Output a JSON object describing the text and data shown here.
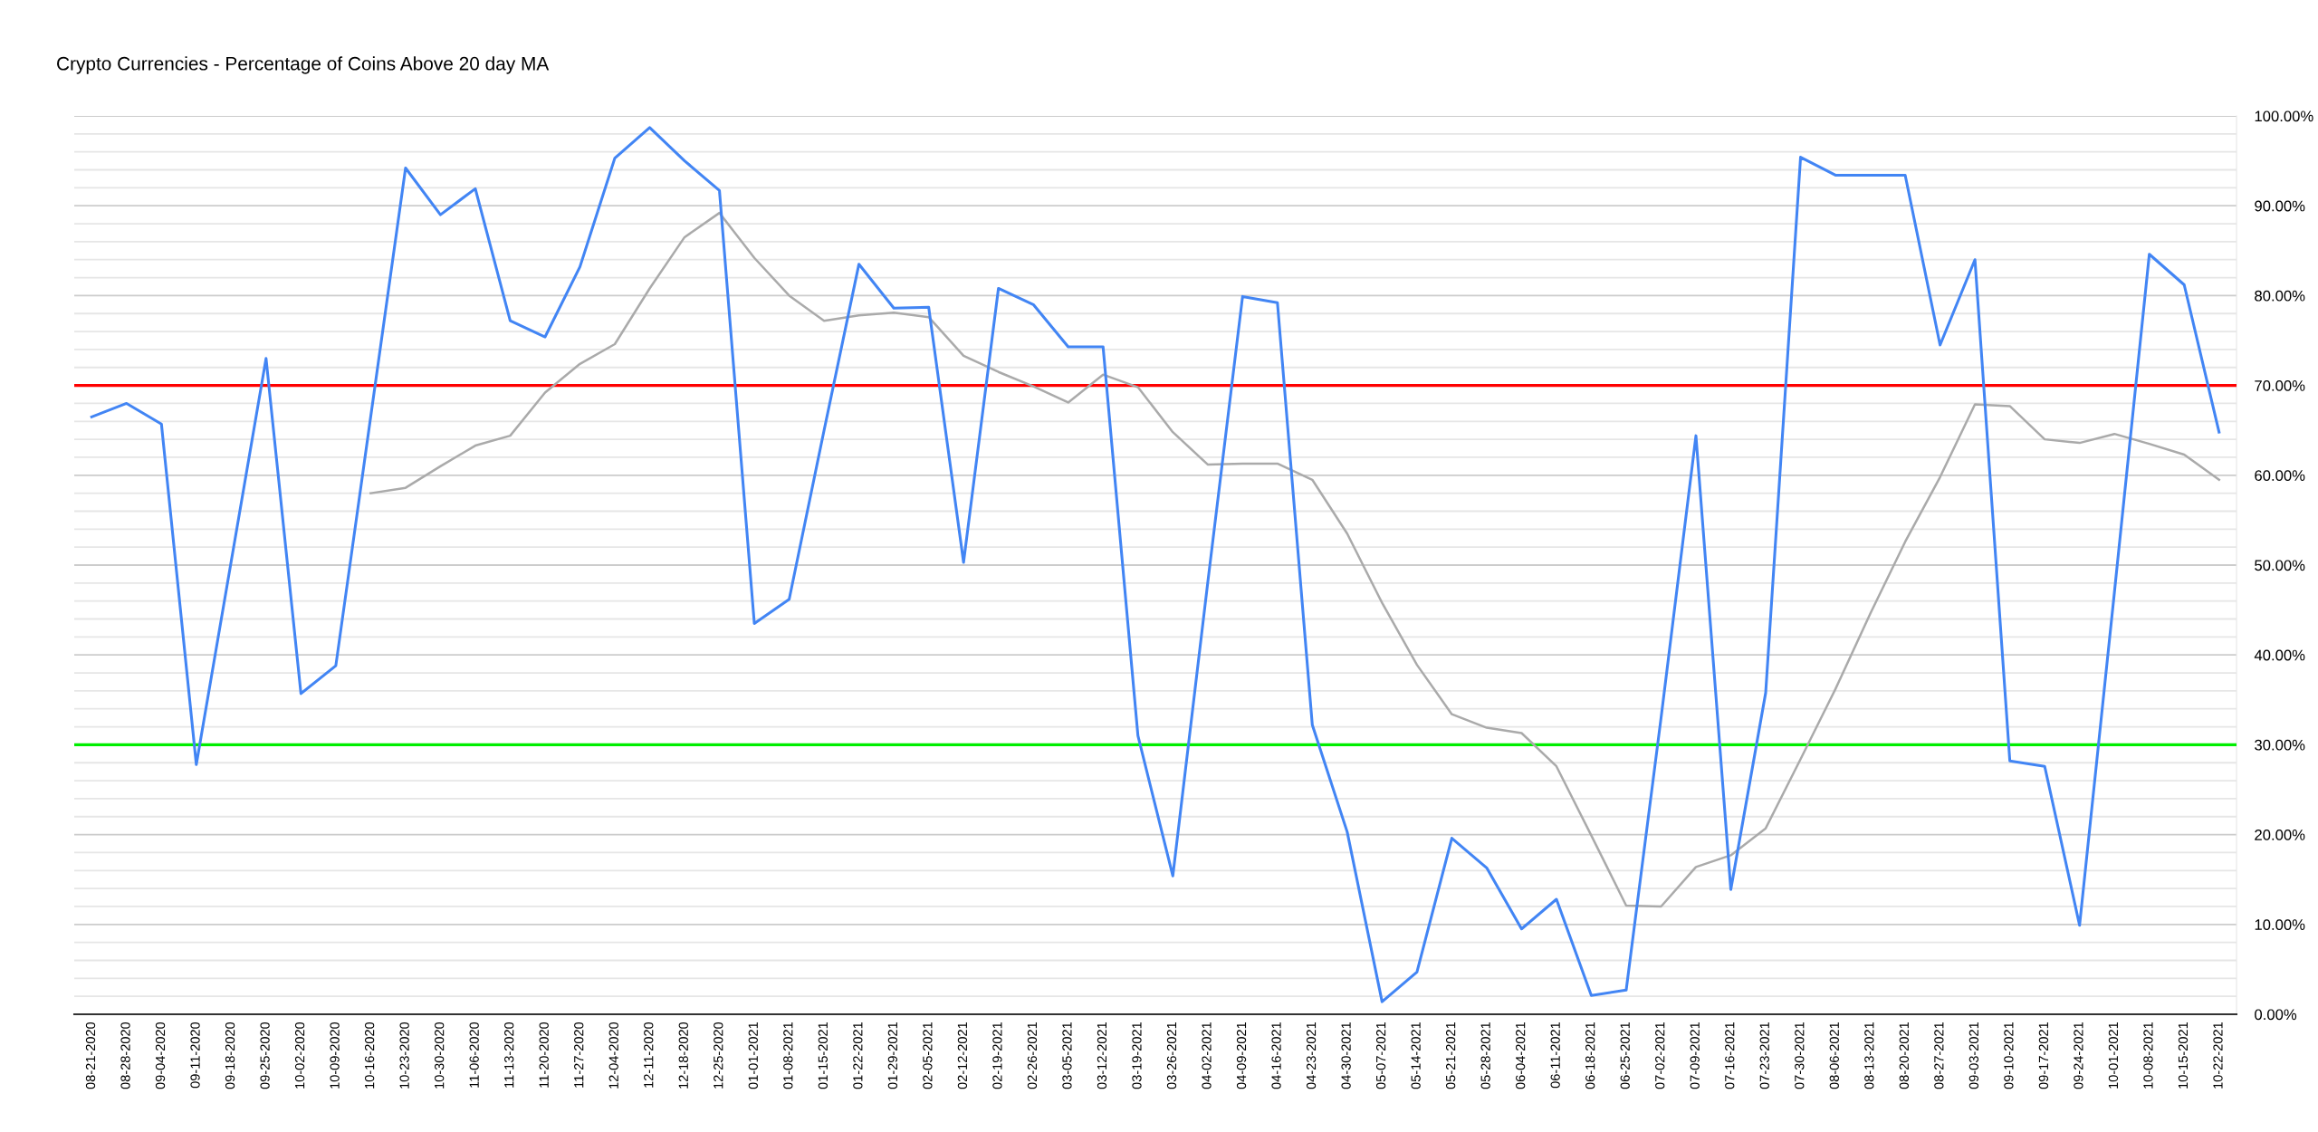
{
  "chart_data": {
    "type": "line",
    "title": "Crypto Currencies - Percentage of Coins Above 20 day MA",
    "categories": [
      "08-21-2020",
      "08-28-2020",
      "09-04-2020",
      "09-11-2020",
      "09-18-2020",
      "09-25-2020",
      "10-02-2020",
      "10-09-2020",
      "10-16-2020",
      "10-23-2020",
      "10-30-2020",
      "11-06-2020",
      "11-13-2020",
      "11-20-2020",
      "11-27-2020",
      "12-04-2020",
      "12-11-2020",
      "12-18-2020",
      "12-25-2020",
      "01-01-2021",
      "01-08-2021",
      "01-15-2021",
      "01-22-2021",
      "01-29-2021",
      "02-05-2021",
      "02-12-2021",
      "02-19-2021",
      "02-26-2021",
      "03-05-2021",
      "03-12-2021",
      "03-19-2021",
      "03-26-2021",
      "04-02-2021",
      "04-09-2021",
      "04-16-2021",
      "04-23-2021",
      "04-30-2021",
      "05-07-2021",
      "05-14-2021",
      "05-21-2021",
      "05-28-2021",
      "06-04-2021",
      "06-11-2021",
      "06-18-2021",
      "06-25-2021",
      "07-02-2021",
      "07-09-2021",
      "07-16-2021",
      "07-23-2021",
      "07-30-2021",
      "08-06-2021",
      "08-13-2021",
      "08-20-2021",
      "08-27-2021",
      "09-03-2021",
      "09-10-2021",
      "09-17-2021",
      "09-24-2021",
      "10-01-2021",
      "10-08-2021",
      "10-15-2021",
      "10-22-2021"
    ],
    "series": [
      {
        "color": "#4285f4",
        "values": [
          66.5,
          68,
          65.7,
          27.8,
          50.4,
          73,
          35.7,
          38.8,
          66.5,
          94.2,
          89,
          91.9,
          77.2,
          75.4,
          83.2,
          95.3,
          98.7,
          95,
          91.7,
          43.5,
          46.2,
          65,
          83.5,
          78.6,
          78.7,
          50.3,
          80.8,
          79,
          74.3,
          74.3,
          31,
          15.4,
          48,
          79.9,
          79.2,
          32.2,
          20.3,
          1.4,
          4.7,
          19.6,
          16.3,
          9.5,
          12.8,
          2.1,
          2.7,
          33,
          64.4,
          13.9,
          35.8,
          95.4,
          93.4,
          93.4,
          93.4,
          74.5,
          84,
          28.2,
          27.6,
          9.9,
          47,
          84.6,
          81.2,
          64.8
        ]
      },
      {
        "color": "#aaaaaa",
        "values": [
          null,
          null,
          null,
          null,
          null,
          null,
          null,
          null,
          58,
          58.6,
          61,
          63.3,
          64.4,
          69.2,
          72.4,
          74.6,
          80.8,
          86.5,
          89.2,
          84.2,
          80,
          77.2,
          77.8,
          78.1,
          77.6,
          73.3,
          71.5,
          69.9,
          68.1,
          71.2,
          69.8,
          64.8,
          61.2,
          61.3,
          61.3,
          59.5,
          53.5,
          45.8,
          38.9,
          33.4,
          31.9,
          31.3,
          27.6,
          19.9,
          12.1,
          12,
          16.4,
          17.7,
          20.7,
          28.4,
          36.2,
          44.6,
          52.6,
          59.8,
          67.9,
          67.7,
          64,
          63.6,
          64.6,
          63.5,
          62.3,
          59.5
        ]
      }
    ],
    "ylim": [
      0,
      100
    ],
    "yticks": [
      {
        "value": 0,
        "label": "0.00%"
      },
      {
        "value": 2,
        "label": null
      },
      {
        "value": 4,
        "label": null
      },
      {
        "value": 6,
        "label": null
      },
      {
        "value": 8,
        "label": null
      },
      {
        "value": 10,
        "label": "10.00%"
      },
      {
        "value": 12,
        "label": null
      },
      {
        "value": 14,
        "label": null
      },
      {
        "value": 16,
        "label": null
      },
      {
        "value": 18,
        "label": null
      },
      {
        "value": 20,
        "label": "20.00%"
      },
      {
        "value": 22,
        "label": null
      },
      {
        "value": 24,
        "label": null
      },
      {
        "value": 26,
        "label": null
      },
      {
        "value": 28,
        "label": null
      },
      {
        "value": 30,
        "label": "30.00%"
      },
      {
        "value": 32,
        "label": null
      },
      {
        "value": 34,
        "label": null
      },
      {
        "value": 36,
        "label": null
      },
      {
        "value": 38,
        "label": null
      },
      {
        "value": 40,
        "label": "40.00%"
      },
      {
        "value": 42,
        "label": null
      },
      {
        "value": 44,
        "label": null
      },
      {
        "value": 46,
        "label": null
      },
      {
        "value": 48,
        "label": null
      },
      {
        "value": 50,
        "label": "50.00%"
      },
      {
        "value": 52,
        "label": null
      },
      {
        "value": 54,
        "label": null
      },
      {
        "value": 56,
        "label": null
      },
      {
        "value": 58,
        "label": null
      },
      {
        "value": 60,
        "label": "60.00%"
      },
      {
        "value": 62,
        "label": null
      },
      {
        "value": 64,
        "label": null
      },
      {
        "value": 66,
        "label": null
      },
      {
        "value": 68,
        "label": null
      },
      {
        "value": 70,
        "label": "70.00%"
      },
      {
        "value": 72,
        "label": null
      },
      {
        "value": 74,
        "label": null
      },
      {
        "value": 76,
        "label": null
      },
      {
        "value": 78,
        "label": null
      },
      {
        "value": 80,
        "label": "80.00%"
      },
      {
        "value": 82,
        "label": null
      },
      {
        "value": 84,
        "label": null
      },
      {
        "value": 86,
        "label": null
      },
      {
        "value": 88,
        "label": null
      },
      {
        "value": 90,
        "label": "90.00%"
      },
      {
        "value": 92,
        "label": null
      },
      {
        "value": 94,
        "label": null
      },
      {
        "value": 96,
        "label": null
      },
      {
        "value": 98,
        "label": null
      },
      {
        "value": 100,
        "label": "100.00%"
      }
    ],
    "ref_lines": [
      {
        "axis": "y",
        "value": 70,
        "color": "#ff0000"
      },
      {
        "axis": "y",
        "value": 30,
        "color": "#00ee00"
      }
    ],
    "grid": "y",
    "legend": false,
    "marker": "none",
    "line_style": "solid"
  }
}
